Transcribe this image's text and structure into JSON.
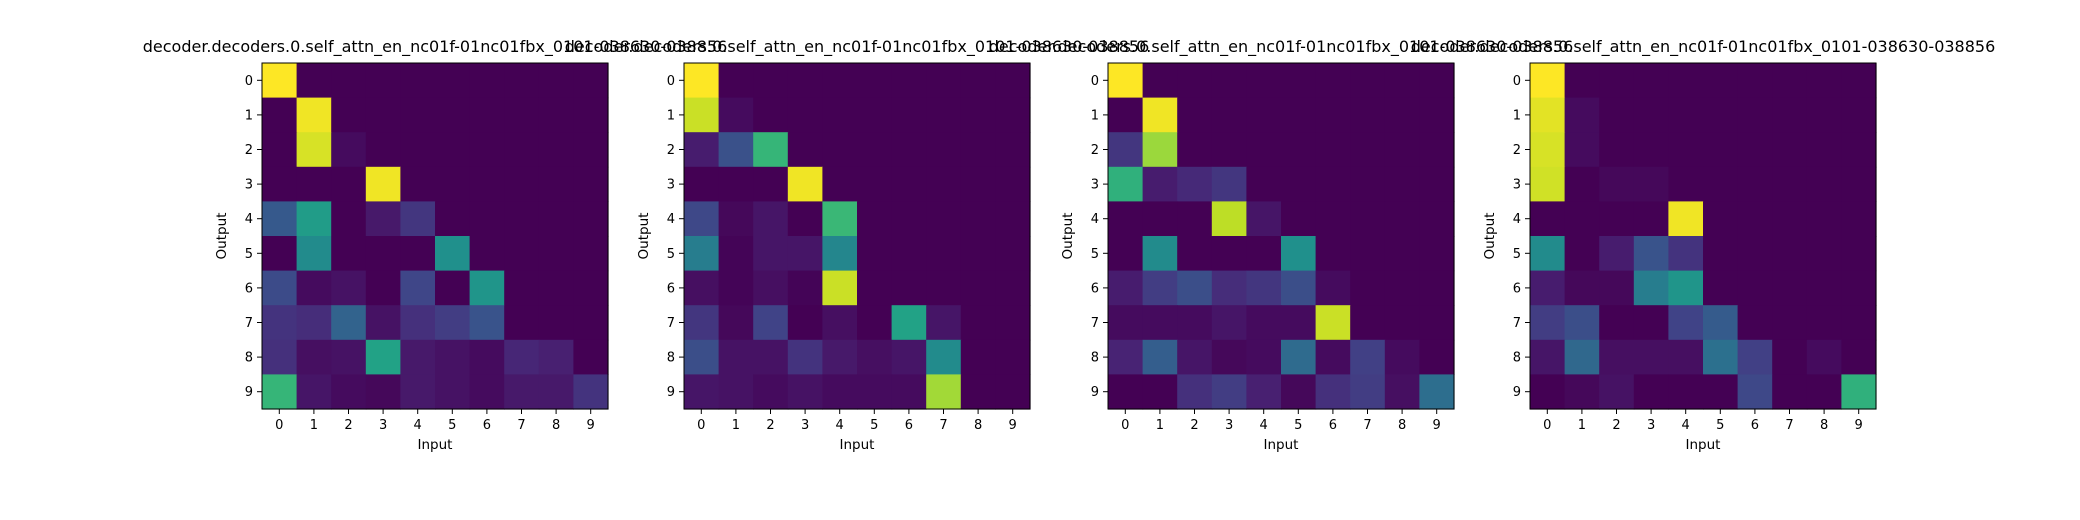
{
  "chart_data": [
    {
      "type": "heatmap",
      "title": "decoder.decoders.0.self_attn_en_nc01f-01nc01fbx_0101-038630-038856",
      "xlabel": "Input",
      "ylabel": "Output",
      "x_ticks": [
        "0",
        "1",
        "2",
        "3",
        "4",
        "5",
        "6",
        "7",
        "8",
        "9"
      ],
      "y_ticks": [
        "0",
        "1",
        "2",
        "3",
        "4",
        "5",
        "6",
        "7",
        "8",
        "9"
      ],
      "values": [
        [
          1.0,
          0.0,
          0.0,
          0.0,
          0.0,
          0.0,
          0.0,
          0.0,
          0.0,
          0.0
        ],
        [
          0.0,
          0.98,
          0.0,
          0.0,
          0.0,
          0.0,
          0.0,
          0.0,
          0.0,
          0.0
        ],
        [
          0.0,
          0.94,
          0.03,
          0.0,
          0.0,
          0.0,
          0.0,
          0.0,
          0.0,
          0.0
        ],
        [
          0.0,
          0.0,
          0.0,
          0.98,
          0.0,
          0.0,
          0.0,
          0.0,
          0.0,
          0.0
        ],
        [
          0.28,
          0.55,
          0.0,
          0.07,
          0.16,
          0.0,
          0.0,
          0.0,
          0.0,
          0.0
        ],
        [
          0.0,
          0.48,
          0.0,
          0.0,
          0.0,
          0.5,
          0.0,
          0.0,
          0.0,
          0.0
        ],
        [
          0.23,
          0.03,
          0.05,
          0.0,
          0.21,
          0.0,
          0.52,
          0.0,
          0.0,
          0.0
        ],
        [
          0.15,
          0.13,
          0.32,
          0.05,
          0.14,
          0.18,
          0.26,
          0.0,
          0.0,
          0.0
        ],
        [
          0.14,
          0.04,
          0.05,
          0.58,
          0.07,
          0.05,
          0.03,
          0.11,
          0.09,
          0.0
        ],
        [
          0.66,
          0.06,
          0.03,
          0.02,
          0.07,
          0.05,
          0.03,
          0.07,
          0.07,
          0.15
        ]
      ]
    },
    {
      "type": "heatmap",
      "title": "decoder.decoders.0.self_attn_en_nc01f-01nc01fbx_0101-038630-038856",
      "xlabel": "Input",
      "ylabel": "Output",
      "x_ticks": [
        "0",
        "1",
        "2",
        "3",
        "4",
        "5",
        "6",
        "7",
        "8",
        "9"
      ],
      "y_ticks": [
        "0",
        "1",
        "2",
        "3",
        "4",
        "5",
        "6",
        "7",
        "8",
        "9"
      ],
      "values": [
        [
          1.0,
          0.0,
          0.0,
          0.0,
          0.0,
          0.0,
          0.0,
          0.0,
          0.0,
          0.0
        ],
        [
          0.92,
          0.03,
          0.0,
          0.0,
          0.0,
          0.0,
          0.0,
          0.0,
          0.0,
          0.0
        ],
        [
          0.08,
          0.25,
          0.66,
          0.0,
          0.0,
          0.0,
          0.0,
          0.0,
          0.0,
          0.0
        ],
        [
          0.0,
          0.0,
          0.0,
          0.98,
          0.0,
          0.0,
          0.0,
          0.0,
          0.0,
          0.0
        ],
        [
          0.22,
          0.02,
          0.06,
          0.0,
          0.67,
          0.0,
          0.0,
          0.0,
          0.0,
          0.0
        ],
        [
          0.42,
          0.01,
          0.06,
          0.06,
          0.46,
          0.0,
          0.0,
          0.0,
          0.0,
          0.0
        ],
        [
          0.04,
          0.01,
          0.04,
          0.01,
          0.92,
          0.0,
          0.0,
          0.0,
          0.0,
          0.0
        ],
        [
          0.16,
          0.02,
          0.2,
          0.0,
          0.04,
          0.0,
          0.58,
          0.06,
          0.0,
          0.0
        ],
        [
          0.24,
          0.05,
          0.05,
          0.15,
          0.07,
          0.04,
          0.06,
          0.48,
          0.0,
          0.0
        ],
        [
          0.06,
          0.05,
          0.03,
          0.05,
          0.03,
          0.03,
          0.03,
          0.86,
          0.0,
          0.0
        ]
      ]
    },
    {
      "type": "heatmap",
      "title": "decoder.decoders.0.self_attn_en_nc01f-01nc01fbx_0101-038630-038856",
      "xlabel": "Input",
      "ylabel": "Output",
      "x_ticks": [
        "0",
        "1",
        "2",
        "3",
        "4",
        "5",
        "6",
        "7",
        "8",
        "9"
      ],
      "y_ticks": [
        "0",
        "1",
        "2",
        "3",
        "4",
        "5",
        "6",
        "7",
        "8",
        "9"
      ],
      "values": [
        [
          1.0,
          0.0,
          0.0,
          0.0,
          0.0,
          0.0,
          0.0,
          0.0,
          0.0,
          0.0
        ],
        [
          0.0,
          0.98,
          0.0,
          0.0,
          0.0,
          0.0,
          0.0,
          0.0,
          0.0,
          0.0
        ],
        [
          0.16,
          0.85,
          0.0,
          0.0,
          0.0,
          0.0,
          0.0,
          0.0,
          0.0,
          0.0
        ],
        [
          0.64,
          0.08,
          0.12,
          0.16,
          0.0,
          0.0,
          0.0,
          0.0,
          0.0,
          0.0
        ],
        [
          0.0,
          0.0,
          0.0,
          0.9,
          0.06,
          0.0,
          0.0,
          0.0,
          0.0,
          0.0
        ],
        [
          0.0,
          0.48,
          0.0,
          0.0,
          0.0,
          0.5,
          0.0,
          0.0,
          0.0,
          0.0
        ],
        [
          0.08,
          0.18,
          0.24,
          0.13,
          0.16,
          0.24,
          0.03,
          0.0,
          0.0,
          0.0
        ],
        [
          0.03,
          0.03,
          0.03,
          0.06,
          0.03,
          0.03,
          0.92,
          0.0,
          0.0,
          0.0
        ],
        [
          0.1,
          0.3,
          0.06,
          0.02,
          0.03,
          0.35,
          0.03,
          0.19,
          0.03,
          0.0
        ],
        [
          0.0,
          0.0,
          0.14,
          0.18,
          0.09,
          0.02,
          0.14,
          0.18,
          0.04,
          0.36
        ]
      ]
    },
    {
      "type": "heatmap",
      "title": "decoder.decoders.0.self_attn_en_nc01f-01nc01fbx_0101-038630-038856",
      "xlabel": "Input",
      "ylabel": "Output",
      "x_ticks": [
        "0",
        "1",
        "2",
        "3",
        "4",
        "5",
        "6",
        "7",
        "8",
        "9"
      ],
      "y_ticks": [
        "0",
        "1",
        "2",
        "3",
        "4",
        "5",
        "6",
        "7",
        "8",
        "9"
      ],
      "values": [
        [
          1.0,
          0.0,
          0.0,
          0.0,
          0.0,
          0.0,
          0.0,
          0.0,
          0.0,
          0.0
        ],
        [
          0.96,
          0.03,
          0.0,
          0.0,
          0.0,
          0.0,
          0.0,
          0.0,
          0.0,
          0.0
        ],
        [
          0.94,
          0.03,
          0.0,
          0.0,
          0.0,
          0.0,
          0.0,
          0.0,
          0.0,
          0.0
        ],
        [
          0.93,
          0.0,
          0.02,
          0.02,
          0.0,
          0.0,
          0.0,
          0.0,
          0.0,
          0.0
        ],
        [
          0.0,
          0.0,
          0.0,
          0.0,
          0.98,
          0.0,
          0.0,
          0.0,
          0.0,
          0.0
        ],
        [
          0.48,
          0.0,
          0.08,
          0.26,
          0.15,
          0.0,
          0.0,
          0.0,
          0.0,
          0.0
        ],
        [
          0.08,
          0.02,
          0.02,
          0.42,
          0.52,
          0.0,
          0.0,
          0.0,
          0.0,
          0.0
        ],
        [
          0.18,
          0.24,
          0.0,
          0.0,
          0.2,
          0.29,
          0.0,
          0.0,
          0.0,
          0.0
        ],
        [
          0.06,
          0.34,
          0.04,
          0.04,
          0.04,
          0.37,
          0.19,
          0.0,
          0.03,
          0.0
        ],
        [
          0.0,
          0.02,
          0.05,
          0.0,
          0.0,
          0.0,
          0.22,
          0.0,
          0.0,
          0.64
        ]
      ]
    }
  ]
}
